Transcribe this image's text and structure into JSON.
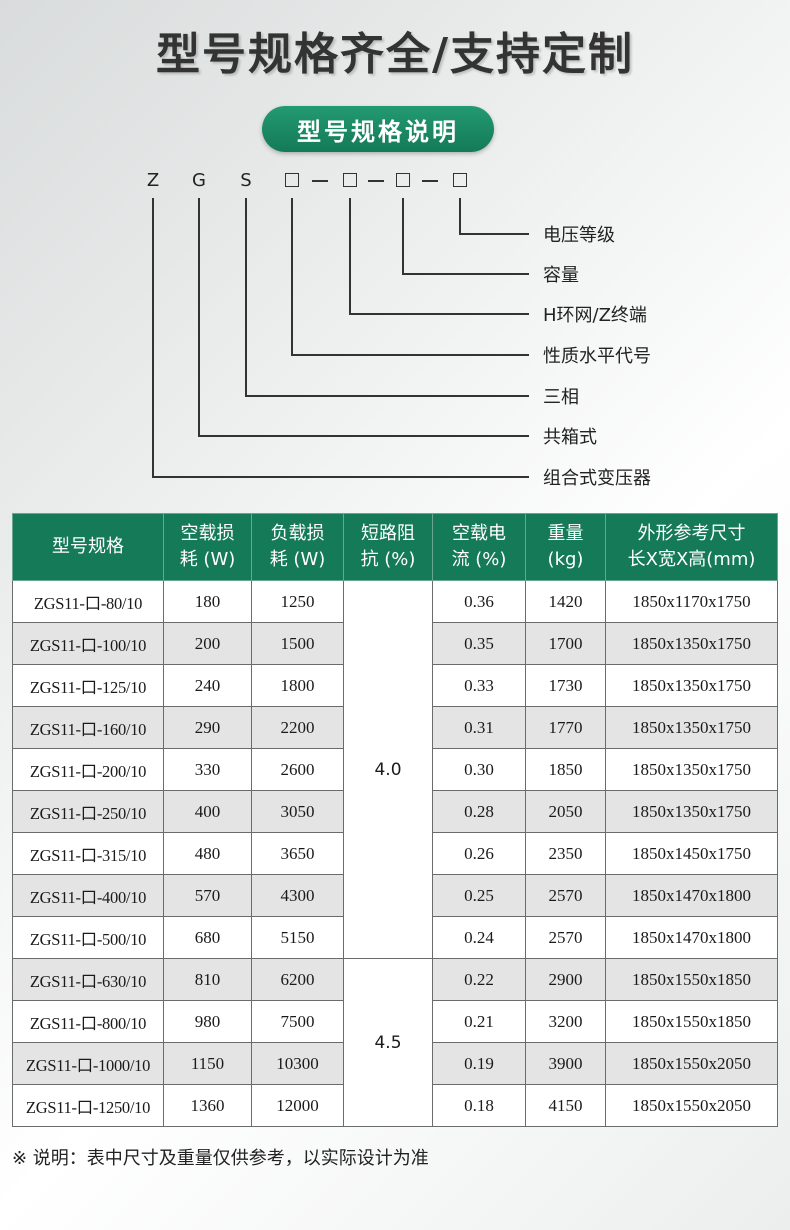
{
  "header": {
    "title": "型号规格齐全/支持定制",
    "section_label": "型号规格说明"
  },
  "code": {
    "letters": [
      "Z",
      "G",
      "S"
    ],
    "box_glyph": "",
    "separator": "—",
    "legend": [
      "电压等级",
      "容量",
      "H环网/Z终端",
      "性质水平代号",
      "三相",
      "共箱式",
      "组合式变压器"
    ]
  },
  "table": {
    "headers": [
      [
        "型号规格"
      ],
      [
        "空载损",
        "耗 (W)"
      ],
      [
        "负载损",
        "耗 (W)"
      ],
      [
        "短路阻",
        "抗 (%)"
      ],
      [
        "空载电",
        "流 (%)"
      ],
      [
        "重量",
        "(kg)"
      ],
      [
        "外形参考尺寸",
        "长X宽X高(mm)"
      ]
    ],
    "impedance_groups": [
      {
        "value": "4.0",
        "rows": 9
      },
      {
        "value": "4.5",
        "rows": 4
      }
    ],
    "rows": [
      {
        "model": "ZGS11-口-80/10",
        "no_load_loss": "180",
        "load_loss": "1250",
        "no_load_current": "0.36",
        "weight": "1420",
        "dimensions": "1850x1170x1750"
      },
      {
        "model": "ZGS11-口-100/10",
        "no_load_loss": "200",
        "load_loss": "1500",
        "no_load_current": "0.35",
        "weight": "1700",
        "dimensions": "1850x1350x1750"
      },
      {
        "model": "ZGS11-口-125/10",
        "no_load_loss": "240",
        "load_loss": "1800",
        "no_load_current": "0.33",
        "weight": "1730",
        "dimensions": "1850x1350x1750"
      },
      {
        "model": "ZGS11-口-160/10",
        "no_load_loss": "290",
        "load_loss": "2200",
        "no_load_current": "0.31",
        "weight": "1770",
        "dimensions": "1850x1350x1750"
      },
      {
        "model": "ZGS11-口-200/10",
        "no_load_loss": "330",
        "load_loss": "2600",
        "no_load_current": "0.30",
        "weight": "1850",
        "dimensions": "1850x1350x1750"
      },
      {
        "model": "ZGS11-口-250/10",
        "no_load_loss": "400",
        "load_loss": "3050",
        "no_load_current": "0.28",
        "weight": "2050",
        "dimensions": "1850x1350x1750"
      },
      {
        "model": "ZGS11-口-315/10",
        "no_load_loss": "480",
        "load_loss": "3650",
        "no_load_current": "0.26",
        "weight": "2350",
        "dimensions": "1850x1450x1750"
      },
      {
        "model": "ZGS11-口-400/10",
        "no_load_loss": "570",
        "load_loss": "4300",
        "no_load_current": "0.25",
        "weight": "2570",
        "dimensions": "1850x1470x1800"
      },
      {
        "model": "ZGS11-口-500/10",
        "no_load_loss": "680",
        "load_loss": "5150",
        "no_load_current": "0.24",
        "weight": "2570",
        "dimensions": "1850x1470x1800"
      },
      {
        "model": "ZGS11-口-630/10",
        "no_load_loss": "810",
        "load_loss": "6200",
        "no_load_current": "0.22",
        "weight": "2900",
        "dimensions": "1850x1550x1850"
      },
      {
        "model": "ZGS11-口-800/10",
        "no_load_loss": "980",
        "load_loss": "7500",
        "no_load_current": "0.21",
        "weight": "3200",
        "dimensions": "1850x1550x1850"
      },
      {
        "model": "ZGS11-口-1000/10",
        "no_load_loss": "1150",
        "load_loss": "10300",
        "no_load_current": "0.19",
        "weight": "3900",
        "dimensions": "1850x1550x2050"
      },
      {
        "model": "ZGS11-口-1250/10",
        "no_load_loss": "1360",
        "load_loss": "12000",
        "no_load_current": "0.18",
        "weight": "4150",
        "dimensions": "1850x1550x2050"
      }
    ]
  },
  "footer": {
    "note": "※ 说明：表中尺寸及重量仅供参考，以实际设计为准"
  }
}
